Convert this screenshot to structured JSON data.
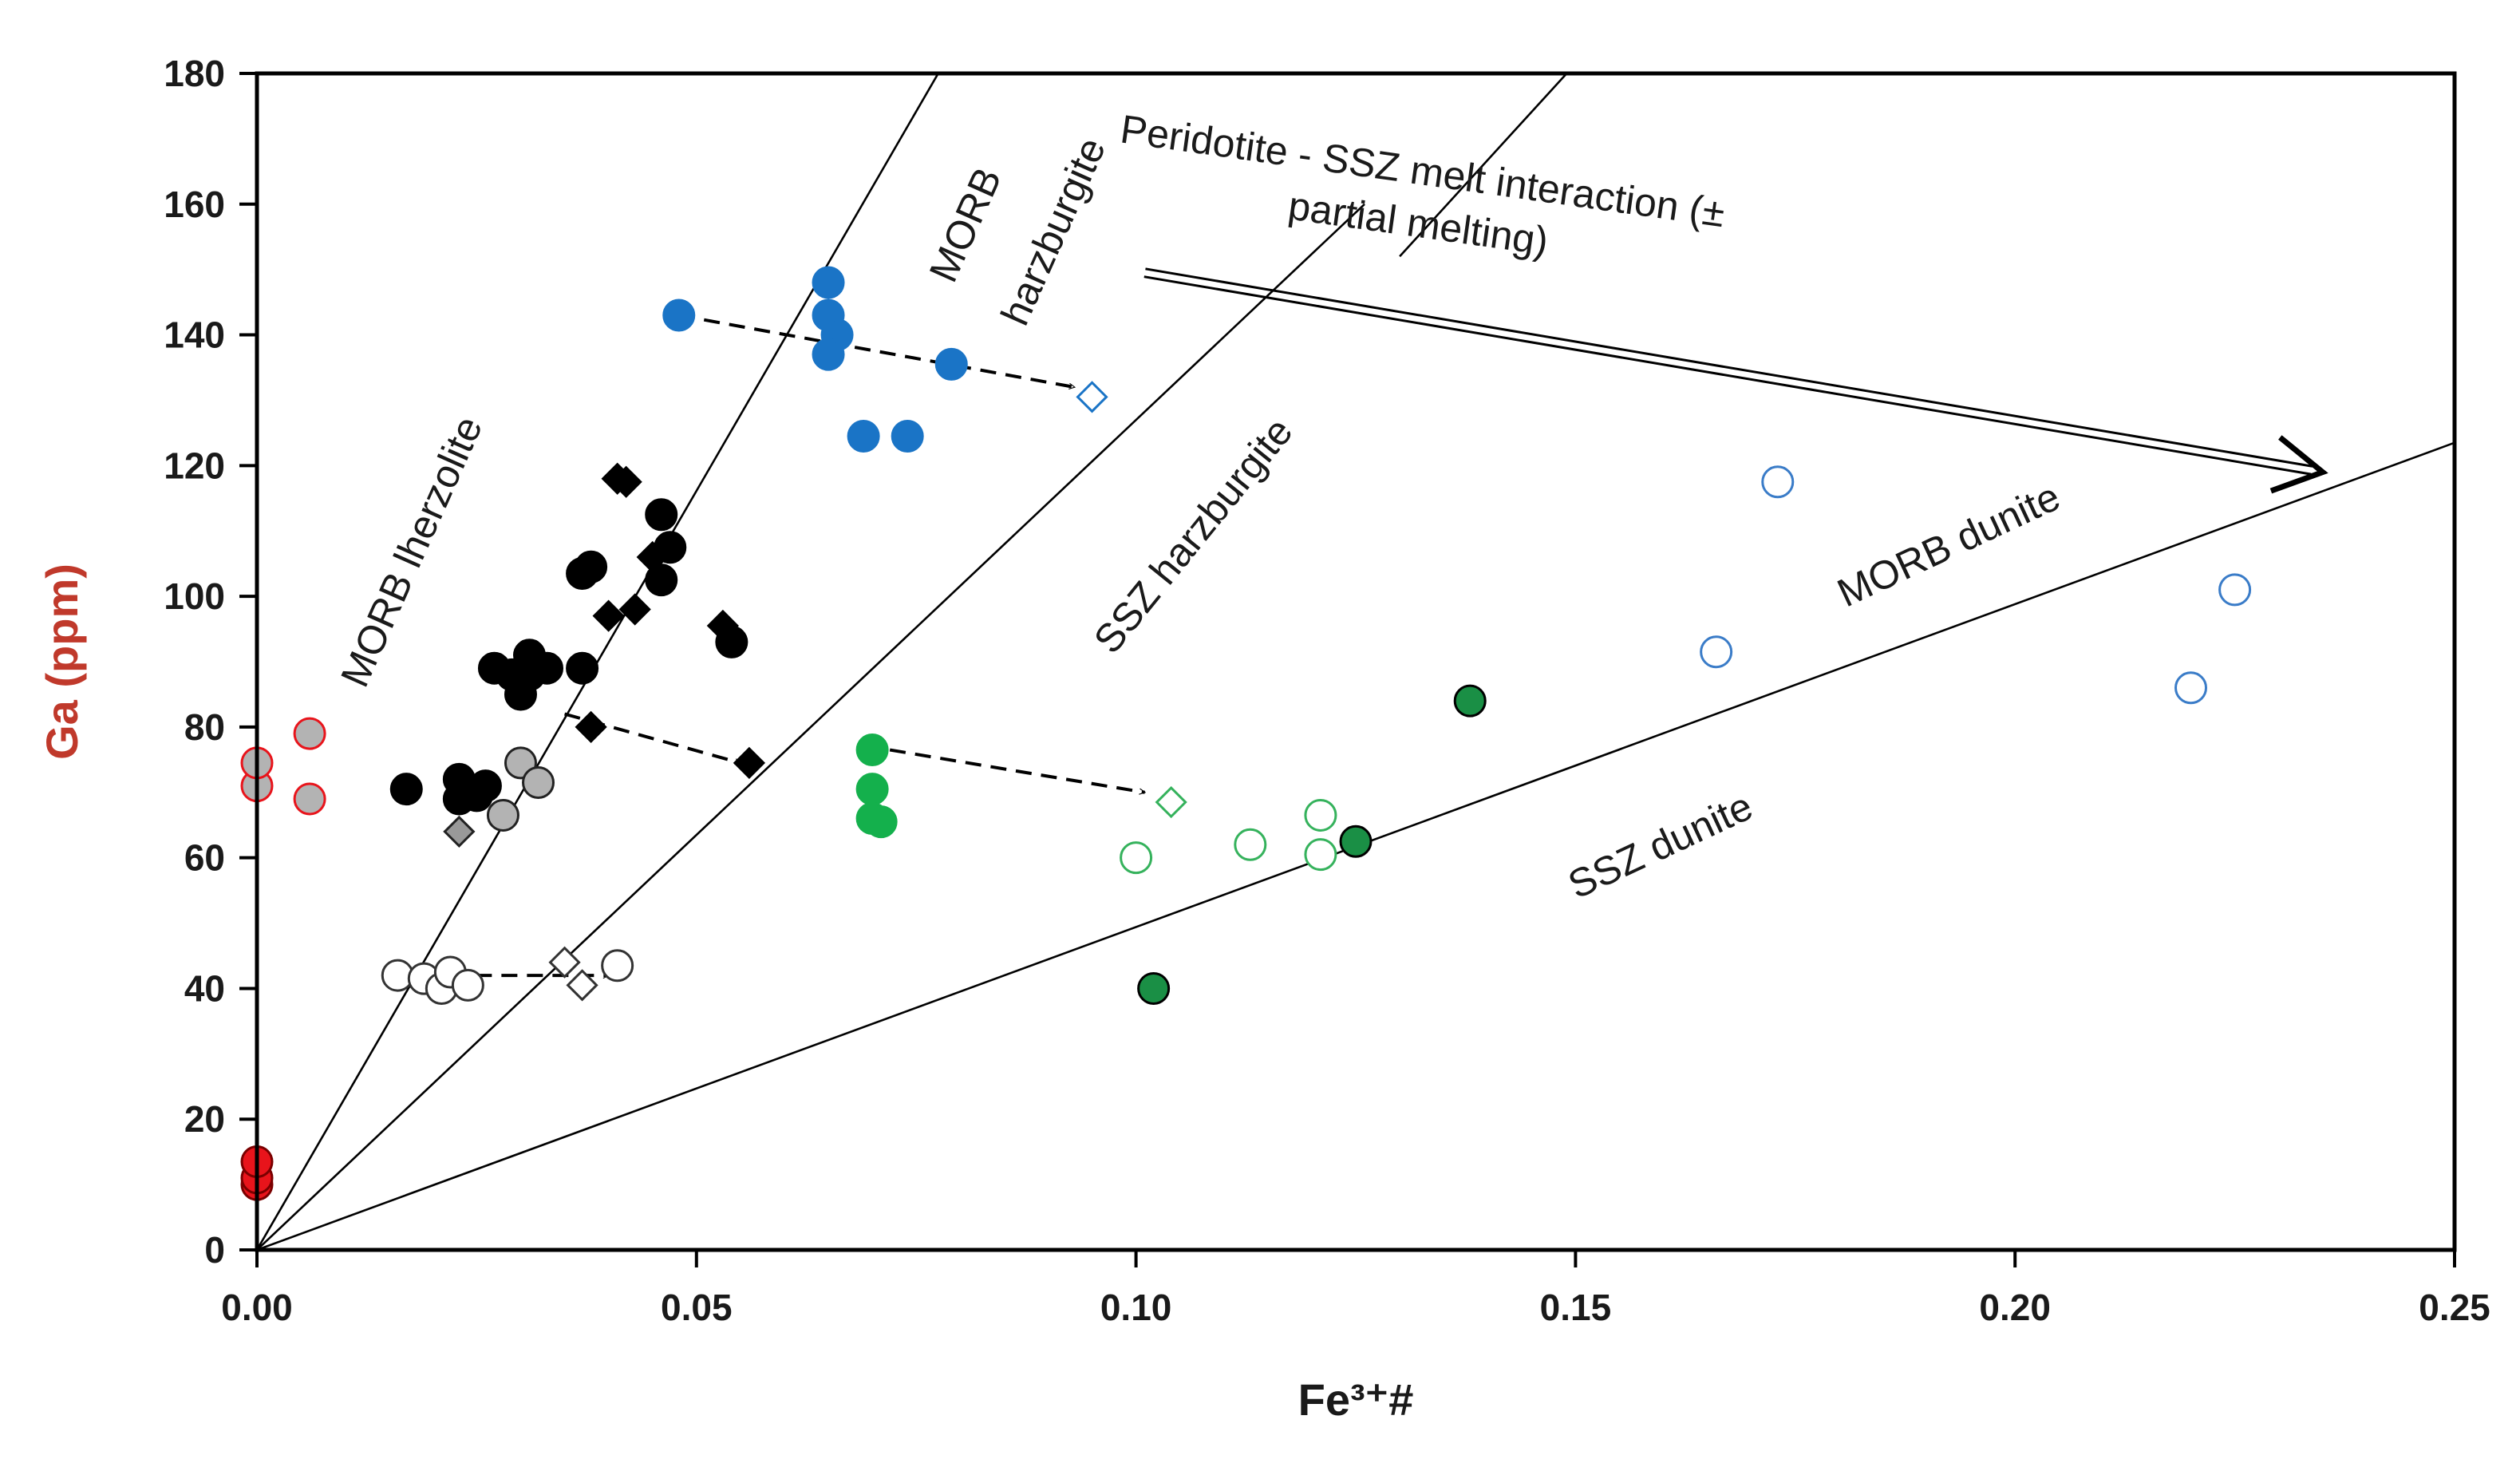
{
  "chart_data": {
    "type": "scatter",
    "title": "",
    "xlabel": "Fe³⁺#",
    "ylabel": "Ga (ppm)",
    "xlim": [
      0,
      0.25
    ],
    "ylim": [
      0,
      180
    ],
    "x_ticks": [
      0,
      0.05,
      0.1,
      0.15,
      0.2,
      0.25
    ],
    "x_tick_labels": [
      "0.00",
      "0.05",
      "0.10",
      "0.15",
      "0.20",
      "0.25"
    ],
    "y_ticks": [
      0,
      20,
      40,
      60,
      80,
      100,
      120,
      140,
      160,
      180
    ],
    "y_tick_labels": [
      "0",
      "20",
      "40",
      "60",
      "80",
      "100",
      "120",
      "140",
      "160",
      "180"
    ],
    "grid": false,
    "colors": {
      "red": "#e8141b",
      "red_outline": "#e8141b",
      "grey": "#b3b3b3",
      "black": "#000000",
      "blue": "#1a74c6",
      "green": "#14b04c",
      "dark_green": "#1a8f45",
      "light_green": "#35b25c",
      "light_blue": "#3a7cc8"
    },
    "reference_lines": [
      {
        "name": "line-1",
        "points": [
          [
            0,
            0
          ],
          [
            0.0775,
            180
          ]
        ]
      },
      {
        "name": "line-2",
        "points": [
          [
            0,
            0
          ],
          [
            0.126,
            160
          ]
        ]
      },
      {
        "name": "line-3",
        "points": [
          [
            0.13,
            152
          ],
          [
            0.149,
            180
          ]
        ]
      },
      {
        "name": "line-4",
        "points": [
          [
            0,
            0
          ],
          [
            0.25,
            123.5
          ]
        ]
      }
    ],
    "field_labels": [
      {
        "text": "MORB lherzolite",
        "x": 0.019,
        "y": 106,
        "rotation": -66
      },
      {
        "text": "MORB",
        "x": 0.082,
        "y": 156,
        "rotation": -66
      },
      {
        "text": "harzburgite",
        "x": 0.092,
        "y": 155,
        "rotation": -66
      },
      {
        "text": "SSZ harzburgite",
        "x": 0.1077,
        "y": 108,
        "rotation": -51
      },
      {
        "text": "MORB dunite",
        "x": 0.1931,
        "y": 106,
        "rotation": -25
      },
      {
        "text": "SSZ dunite",
        "x": 0.1603,
        "y": 60,
        "rotation": -25
      },
      {
        "text": "Peridotite - SSZ melt interaction (±",
        "x": 0.1324,
        "y": 163,
        "rotation": 8
      },
      {
        "text": "partial melting)",
        "x": 0.1319,
        "y": 155,
        "rotation": 8
      }
    ],
    "trend_arrow": {
      "from": [
        0.101,
        149.5
      ],
      "to": [
        0.235,
        119
      ]
    },
    "dashed_arrows": [
      {
        "from": [
          0.048,
          143
        ],
        "to": [
          0.093,
          132
        ]
      },
      {
        "from": [
          0.035,
          82
        ],
        "to": [
          0.055,
          74.5
        ]
      },
      {
        "from": [
          0.072,
          76.5
        ],
        "to": [
          0.101,
          70
        ]
      },
      {
        "from": [
          0.022,
          42
        ],
        "to": [
          0.04,
          42
        ]
      }
    ],
    "series": [
      {
        "name": "red-filled-circles",
        "marker": "circle",
        "fill": "#e8141b",
        "stroke": "#7a0000",
        "points": [
          [
            0,
            10
          ],
          [
            0,
            11
          ],
          [
            0,
            13.5
          ]
        ]
      },
      {
        "name": "grey-red-outline-circles",
        "marker": "circle",
        "fill": "#b3b3b3",
        "stroke": "#e8141b",
        "points": [
          [
            0,
            71
          ],
          [
            0,
            74.5
          ],
          [
            0.006,
            79
          ],
          [
            0.006,
            69
          ]
        ]
      },
      {
        "name": "grey-circles",
        "marker": "circle",
        "fill": "#b3b3b3",
        "stroke": "#222222",
        "points": [
          [
            0.028,
            66.5
          ],
          [
            0.03,
            74.5
          ],
          [
            0.032,
            71.5
          ]
        ]
      },
      {
        "name": "grey-diamonds",
        "marker": "diamond",
        "fill": "#999999",
        "stroke": "#222222",
        "points": [
          [
            0.023,
            64
          ]
        ]
      },
      {
        "name": "black-circles",
        "marker": "circle",
        "fill": "#000000",
        "stroke": "#000000",
        "points": [
          [
            0.017,
            70.5
          ],
          [
            0.023,
            72
          ],
          [
            0.023,
            69
          ],
          [
            0.025,
            69.5
          ],
          [
            0.026,
            71
          ],
          [
            0.027,
            89
          ],
          [
            0.029,
            88
          ],
          [
            0.03,
            85
          ],
          [
            0.031,
            91
          ],
          [
            0.031,
            88
          ],
          [
            0.033,
            89
          ],
          [
            0.037,
            89
          ],
          [
            0.037,
            103.5
          ],
          [
            0.038,
            104.5
          ],
          [
            0.046,
            112.5
          ],
          [
            0.046,
            102.5
          ],
          [
            0.047,
            107.5
          ],
          [
            0.054,
            93
          ]
        ]
      },
      {
        "name": "black-diamonds",
        "marker": "diamond",
        "fill": "#000000",
        "stroke": "#000000",
        "points": [
          [
            0.024,
            70
          ],
          [
            0.038,
            80
          ],
          [
            0.04,
            97
          ],
          [
            0.041,
            118
          ],
          [
            0.042,
            117.5
          ],
          [
            0.043,
            98
          ],
          [
            0.045,
            106
          ],
          [
            0.053,
            95.5
          ],
          [
            0.056,
            74.5
          ]
        ]
      },
      {
        "name": "white-circles",
        "marker": "circle",
        "fill": "#ffffff",
        "stroke": "#333333",
        "points": [
          [
            0.016,
            42
          ],
          [
            0.019,
            41.5
          ],
          [
            0.021,
            40
          ],
          [
            0.022,
            42.5
          ],
          [
            0.024,
            40.5
          ],
          [
            0.041,
            43.5
          ]
        ]
      },
      {
        "name": "white-diamonds",
        "marker": "diamond",
        "fill": "#ffffff",
        "stroke": "#333333",
        "points": [
          [
            0.035,
            44
          ],
          [
            0.037,
            40.5
          ]
        ]
      },
      {
        "name": "blue-circles",
        "marker": "circle",
        "fill": "#1a74c6",
        "stroke": "#1a74c6",
        "points": [
          [
            0.048,
            143
          ],
          [
            0.065,
            148
          ],
          [
            0.065,
            143
          ],
          [
            0.066,
            140
          ],
          [
            0.065,
            137
          ],
          [
            0.069,
            124.5
          ],
          [
            0.074,
            124.5
          ],
          [
            0.079,
            135.5
          ]
        ]
      },
      {
        "name": "blue-open-diamond",
        "marker": "diamond",
        "fill": "#ffffff",
        "stroke": "#1a74c6",
        "points": [
          [
            0.095,
            130.5
          ]
        ]
      },
      {
        "name": "green-circles",
        "marker": "circle",
        "fill": "#14b04c",
        "stroke": "#14b04c",
        "points": [
          [
            0.07,
            76.5
          ],
          [
            0.07,
            70.5
          ],
          [
            0.07,
            66
          ],
          [
            0.071,
            65.5
          ]
        ]
      },
      {
        "name": "green-open-diamond",
        "marker": "diamond",
        "fill": "#ffffff",
        "stroke": "#35b25c",
        "points": [
          [
            0.104,
            68.5
          ]
        ]
      },
      {
        "name": "green-open-circles",
        "marker": "circle",
        "fill": "#ffffff",
        "stroke": "#35b25c",
        "points": [
          [
            0.1,
            60
          ],
          [
            0.113,
            62
          ],
          [
            0.121,
            66.5
          ],
          [
            0.121,
            60.5
          ]
        ]
      },
      {
        "name": "dark-green-circles",
        "marker": "circle",
        "fill": "#1a8f45",
        "stroke": "#000000",
        "points": [
          [
            0.102,
            40
          ],
          [
            0.125,
            62.5
          ],
          [
            0.138,
            84
          ]
        ]
      },
      {
        "name": "blue-open-circles",
        "marker": "circle",
        "fill": "#ffffff",
        "stroke": "#3a7cc8",
        "points": [
          [
            0.166,
            91.5
          ],
          [
            0.173,
            117.5
          ],
          [
            0.22,
            86
          ],
          [
            0.225,
            101
          ]
        ]
      }
    ]
  }
}
